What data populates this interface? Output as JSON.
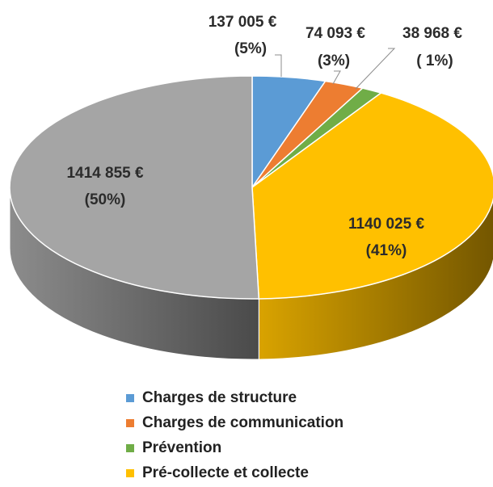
{
  "chart_data": {
    "type": "pie3d",
    "categories": [
      "Charges de structure",
      "Charges de communication",
      "Prévention",
      "Pré-collecte et collecte",
      null
    ],
    "values": [
      137005,
      74093,
      38968,
      1140025,
      1414855
    ],
    "value_labels": [
      "137 005 €",
      "74 093 €",
      "38 968 €",
      "1140 025 €",
      "1414 855 €"
    ],
    "percent_labels": [
      "(5%)",
      "(3%)",
      "( 1%)",
      "(41%)",
      "(50%)"
    ],
    "colors": [
      "#5b9bd5",
      "#ed7d31",
      "#70ad47",
      "#ffc000",
      "#a5a5a5"
    ],
    "legend": "bottom"
  }
}
